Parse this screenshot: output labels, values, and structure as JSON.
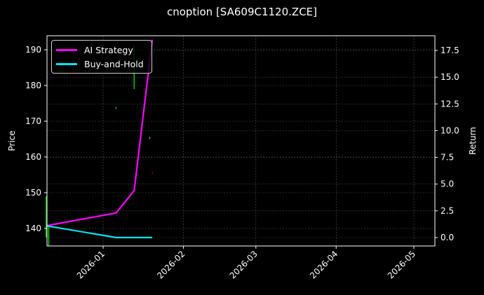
{
  "title": "cnoption [SA609C1120.ZCE]",
  "chart_data": {
    "type": "line",
    "title": "cnoption [SA609C1120.ZCE]",
    "xlabel": "",
    "ylabel": "Price",
    "y2label": "Return",
    "x_ticks": [
      "2026-01",
      "2026-02",
      "2026-03",
      "2026-04",
      "2026-05"
    ],
    "y_ticks": [
      140,
      150,
      160,
      170,
      180,
      190
    ],
    "y2_ticks": [
      "0.0",
      "2.5",
      "5.0",
      "7.5",
      "10.0",
      "12.5",
      "15.0",
      "17.5"
    ],
    "ylim": [
      135,
      194
    ],
    "y2lim": [
      -0.9,
      18.7
    ],
    "grid": true,
    "legend_position": "upper left",
    "series": [
      {
        "name": "AI Strategy",
        "color": "#ff00ff",
        "axis": "right",
        "x": [
          "2025-12-10",
          "2026-01-06",
          "2026-01-13",
          "2026-01-20"
        ],
        "values": [
          1.1,
          2.3,
          4.4,
          18.5
        ]
      },
      {
        "name": "Buy-and-Hold",
        "color": "#00e5ee",
        "axis": "right",
        "x": [
          "2025-12-10",
          "2026-01-06",
          "2026-01-13",
          "2026-01-20"
        ],
        "values": [
          1.1,
          0.0,
          0.0,
          0.0
        ]
      }
    ],
    "candles": [
      {
        "x": "2025-12-10",
        "low": 137.5,
        "high": 149.0,
        "color": "#00cc00"
      },
      {
        "x": "2025-12-11",
        "low": 135.0,
        "high": 141.0,
        "color": "#00cc00"
      },
      {
        "x": "2026-01-06",
        "low": 173.5,
        "high": 174.0,
        "color": "#00cc00"
      },
      {
        "x": "2026-01-13",
        "low": 179.0,
        "high": 191.0,
        "color": "#00cc00"
      },
      {
        "x": "2026-01-19",
        "low": 165.0,
        "high": 165.6,
        "color": "#00cc00"
      },
      {
        "x": "2026-01-20",
        "low": 155.5,
        "high": 155.7,
        "color": "#cc0000"
      }
    ]
  },
  "legend": {
    "items": [
      {
        "label": "AI Strategy",
        "color": "#ff00ff"
      },
      {
        "label": "Buy-and-Hold",
        "color": "#00e5ee"
      }
    ]
  },
  "axes": {
    "left_label": "Price",
    "right_label": "Return"
  }
}
